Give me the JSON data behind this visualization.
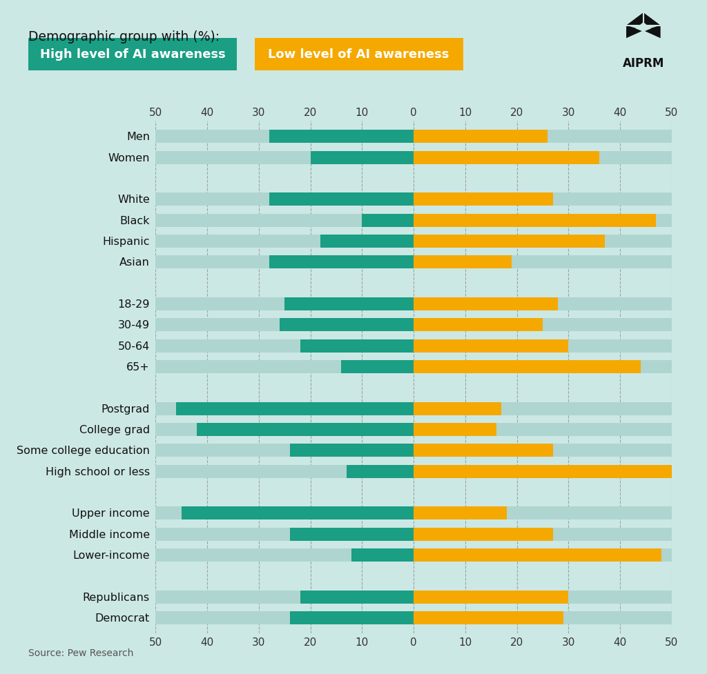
{
  "categories": [
    "Men",
    "Women",
    "",
    "White",
    "Black",
    "Hispanic",
    "Asian",
    " ",
    "18-29",
    "30-49",
    "50-64",
    "65+",
    "  ",
    "Postgrad",
    "College grad",
    "Some college education",
    "High school or less",
    "   ",
    "Upper income",
    "Middle income",
    "Lower-income",
    "    ",
    "Republicans",
    "Democrat"
  ],
  "high_values": [
    28,
    20,
    0,
    28,
    10,
    18,
    28,
    0,
    25,
    26,
    22,
    14,
    0,
    46,
    42,
    24,
    13,
    0,
    45,
    24,
    12,
    0,
    22,
    24
  ],
  "low_values": [
    26,
    36,
    0,
    27,
    47,
    37,
    19,
    0,
    28,
    25,
    30,
    44,
    0,
    17,
    16,
    27,
    50,
    0,
    18,
    27,
    48,
    0,
    30,
    29
  ],
  "high_color": "#1a9e84",
  "low_color": "#f5a800",
  "background_color": "#cce8e4",
  "bar_bg_color": "#afd5d0",
  "title_text": "Demographic group with (%):",
  "legend_high": "High level of AI awareness",
  "legend_low": "Low level of AI awareness",
  "source_text": "Source: Pew Research",
  "xlim": 50
}
